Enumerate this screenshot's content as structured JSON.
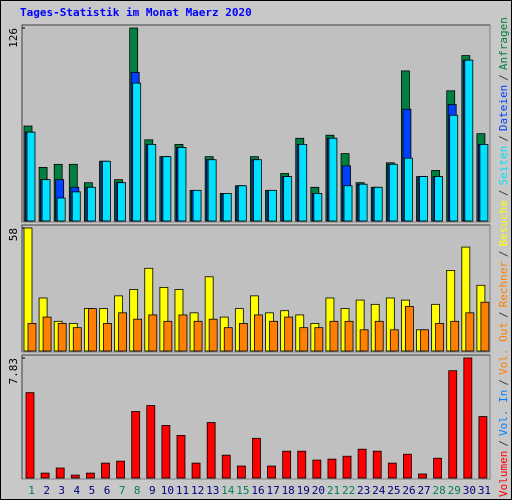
{
  "title": "Tages-Statistik im Monat Maerz 2020",
  "separator": "/",
  "chart_data": [
    {
      "type": "bar",
      "ylim": [
        0,
        126
      ],
      "yticks": [
        126
      ],
      "series": [
        {
          "name": "Anfragen",
          "color": "#008040",
          "values": [
            62,
            35,
            37,
            37,
            25,
            39,
            27,
            126,
            53,
            42,
            50,
            20,
            42,
            18,
            23,
            42,
            20,
            31,
            54,
            22,
            56,
            44,
            25,
            22,
            38,
            98,
            29,
            33,
            85,
            108,
            57
          ]
        },
        {
          "name": "Dateien",
          "color": "#0040ff",
          "values": [
            58,
            27,
            27,
            22,
            22,
            39,
            25,
            97,
            50,
            42,
            48,
            20,
            40,
            18,
            23,
            40,
            20,
            29,
            50,
            18,
            54,
            36,
            24,
            22,
            37,
            73,
            29,
            29,
            76,
            105,
            50
          ]
        },
        {
          "name": "Seiten",
          "color": "#00e0ff",
          "values": [
            58,
            27,
            15,
            19,
            22,
            39,
            25,
            90,
            50,
            42,
            48,
            20,
            40,
            18,
            23,
            40,
            20,
            29,
            50,
            18,
            54,
            23,
            24,
            22,
            37,
            41,
            29,
            29,
            69,
            105,
            50
          ]
        }
      ]
    },
    {
      "type": "bar",
      "ylim": [
        0,
        58
      ],
      "yticks": [
        58
      ],
      "series": [
        {
          "name": "Besuche",
          "color": "#ffff00",
          "values": [
            58,
            25,
            14,
            13,
            20,
            20,
            26,
            29,
            39,
            30,
            29,
            18,
            35,
            16,
            20,
            26,
            18,
            19,
            17,
            13,
            25,
            20,
            24,
            22,
            25,
            24,
            10,
            22,
            38,
            49,
            31
          ]
        },
        {
          "name": "Rechner",
          "color": "#ff8000",
          "values": [
            13,
            16,
            13,
            11,
            20,
            13,
            18,
            15,
            17,
            14,
            17,
            14,
            15,
            11,
            13,
            17,
            14,
            16,
            11,
            11,
            14,
            14,
            10,
            14,
            10,
            21,
            10,
            13,
            14,
            18,
            23
          ]
        }
      ]
    },
    {
      "type": "bar",
      "ylim": [
        0,
        7.83
      ],
      "yticks": [
        7.83
      ],
      "categories": [
        "1",
        "2",
        "3",
        "4",
        "5",
        "6",
        "7",
        "8",
        "9",
        "10",
        "11",
        "12",
        "13",
        "14",
        "15",
        "16",
        "17",
        "18",
        "19",
        "20",
        "21",
        "22",
        "23",
        "24",
        "25",
        "26",
        "27",
        "28",
        "29",
        "30",
        "31"
      ],
      "category_colors": [
        "#00805c",
        "#000080",
        "#000080",
        "#000080",
        "#000080",
        "#000080",
        "#00805c",
        "#00805c",
        "#000080",
        "#000080",
        "#000080",
        "#000080",
        "#000080",
        "#00805c",
        "#00805c",
        "#000080",
        "#000080",
        "#000080",
        "#000080",
        "#000080",
        "#00805c",
        "#00805c",
        "#000080",
        "#000080",
        "#000080",
        "#000080",
        "#000080",
        "#00805c",
        "#00805c",
        "#000080",
        "#000080"
      ],
      "series": [
        {
          "name": "Vol. Out",
          "color": "#ff8000"
        },
        {
          "name": "Vol. In",
          "color": "#0080ff"
        },
        {
          "name": "Volumen",
          "color": "#ff0000",
          "values": [
            5.57,
            0.32,
            0.65,
            0.19,
            0.32,
            0.97,
            1.1,
            4.34,
            4.73,
            3.43,
            2.78,
            0.97,
            3.62,
            1.49,
            0.78,
            2.59,
            0.78,
            1.75,
            1.75,
            1.17,
            1.23,
            1.42,
            1.88,
            1.75,
            0.97,
            1.55,
            0.26,
            1.29,
            7.0,
            7.83,
            4.01
          ]
        }
      ]
    }
  ]
}
